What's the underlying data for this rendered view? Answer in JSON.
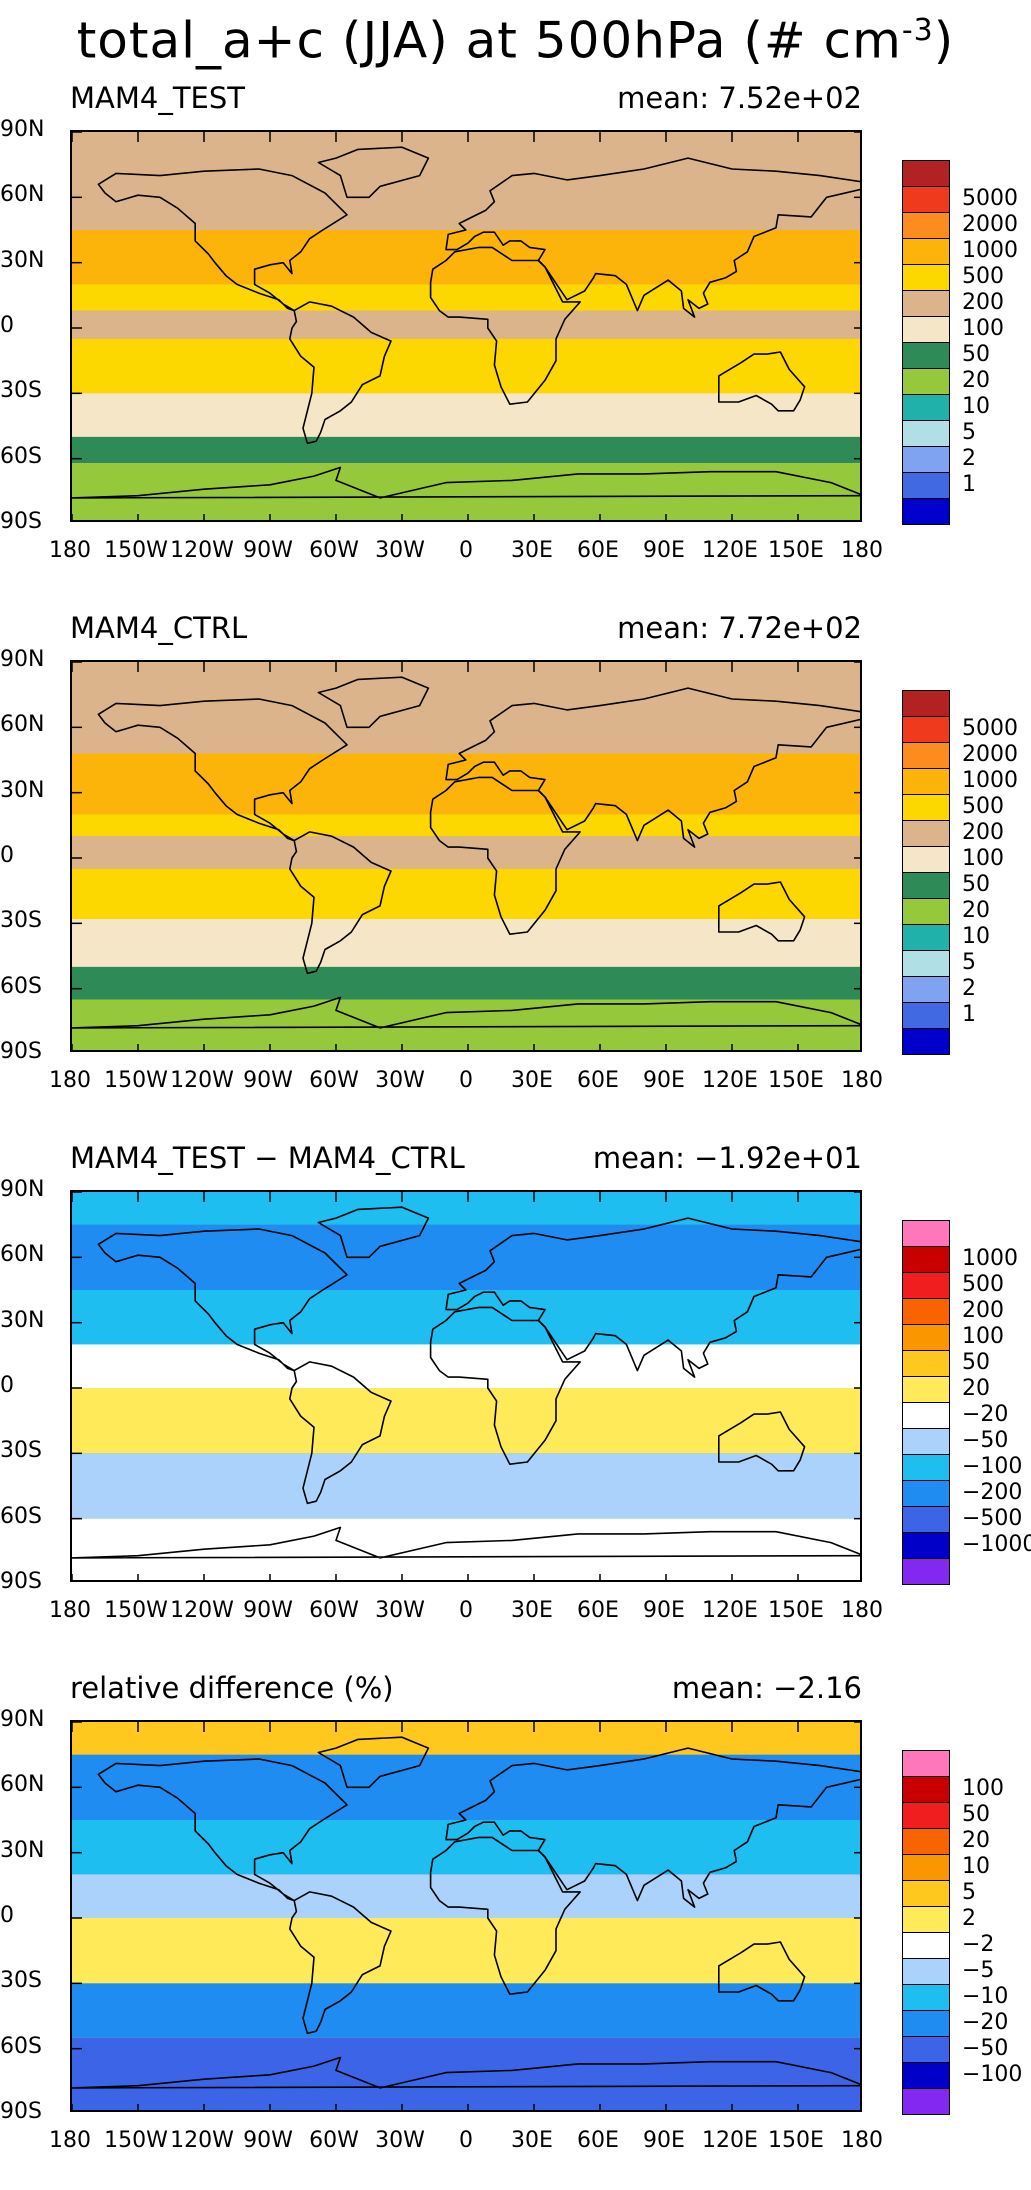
{
  "title": {
    "main": "total_a+c (JJA) at 500hPa (# cm",
    "sup": "-3",
    "close": ")"
  },
  "axes": {
    "lat_labels": [
      "90N",
      "60N",
      "30N",
      "0",
      "30S",
      "60S",
      "90S"
    ],
    "lat_values": [
      90,
      60,
      30,
      0,
      -30,
      -60,
      -90
    ],
    "lon_labels": [
      "180",
      "150W",
      "120W",
      "90W",
      "60W",
      "30W",
      "0",
      "30E",
      "60E",
      "90E",
      "120E",
      "150E",
      "180"
    ],
    "lon_values": [
      -180,
      -150,
      -120,
      -90,
      -60,
      -30,
      0,
      30,
      60,
      90,
      120,
      150,
      180
    ],
    "xlim": [
      -180,
      180
    ],
    "ylim": [
      -90,
      90
    ]
  },
  "chart_data": [
    {
      "type": "heatmap",
      "title": "MAM4_TEST",
      "mean_label": "mean:",
      "mean_value": "7.52e+02",
      "levels": [
        "5000",
        "2000",
        "1000",
        "500",
        "200",
        "100",
        "50",
        "20",
        "10",
        "5",
        "2",
        "1"
      ],
      "colors": [
        "#b22222",
        "#f03a1e",
        "#fc8c1e",
        "#fcb40a",
        "#fcd800",
        "#dcb48c",
        "#f5e6c8",
        "#2e8b57",
        "#96c83c",
        "#20b2aa",
        "#b0e0e6",
        "#7fa3f0",
        "#4169e1",
        "#0000cd"
      ],
      "bands": [
        {
          "lat_from": 90,
          "lat_to": 45,
          "level": 5
        },
        {
          "lat_from": 45,
          "lat_to": 20,
          "level": 3
        },
        {
          "lat_from": 20,
          "lat_to": 8,
          "level": 4
        },
        {
          "lat_from": 8,
          "lat_to": -5,
          "level": 5
        },
        {
          "lat_from": -5,
          "lat_to": -30,
          "level": 4
        },
        {
          "lat_from": -30,
          "lat_to": -50,
          "level": 6
        },
        {
          "lat_from": -50,
          "lat_to": -62,
          "level": 7
        },
        {
          "lat_from": -62,
          "lat_to": -90,
          "level": 8
        }
      ]
    },
    {
      "type": "heatmap",
      "title": "MAM4_CTRL",
      "mean_label": "mean:",
      "mean_value": "7.72e+02",
      "levels": [
        "5000",
        "2000",
        "1000",
        "500",
        "200",
        "100",
        "50",
        "20",
        "10",
        "5",
        "2",
        "1"
      ],
      "colors": [
        "#b22222",
        "#f03a1e",
        "#fc8c1e",
        "#fcb40a",
        "#fcd800",
        "#dcb48c",
        "#f5e6c8",
        "#2e8b57",
        "#96c83c",
        "#20b2aa",
        "#b0e0e6",
        "#7fa3f0",
        "#4169e1",
        "#0000cd"
      ],
      "bands": [
        {
          "lat_from": 90,
          "lat_to": 48,
          "level": 5
        },
        {
          "lat_from": 48,
          "lat_to": 20,
          "level": 3
        },
        {
          "lat_from": 20,
          "lat_to": 10,
          "level": 4
        },
        {
          "lat_from": 10,
          "lat_to": -5,
          "level": 5
        },
        {
          "lat_from": -5,
          "lat_to": -28,
          "level": 4
        },
        {
          "lat_from": -28,
          "lat_to": -50,
          "level": 6
        },
        {
          "lat_from": -50,
          "lat_to": -65,
          "level": 7
        },
        {
          "lat_from": -65,
          "lat_to": -90,
          "level": 8
        }
      ]
    },
    {
      "type": "heatmap",
      "title": "MAM4_TEST − MAM4_CTRL",
      "mean_label": "mean:",
      "mean_value": "−1.92e+01",
      "levels": [
        "1000",
        "500",
        "200",
        "100",
        "50",
        "20",
        "−20",
        "−50",
        "−100",
        "−200",
        "−500",
        "−1000"
      ],
      "colors": [
        "#ff77bb",
        "#c80000",
        "#f01e1e",
        "#fa6400",
        "#fa9600",
        "#ffc81e",
        "#ffeb5a",
        "#ffffff",
        "#aad2fa",
        "#1ebef0",
        "#1e8cf0",
        "#3c64e6",
        "#0000c8",
        "#8228f0"
      ],
      "bands": [
        {
          "lat_from": 90,
          "lat_to": 75,
          "level": 9
        },
        {
          "lat_from": 75,
          "lat_to": 45,
          "level": 10
        },
        {
          "lat_from": 45,
          "lat_to": 20,
          "level": 9
        },
        {
          "lat_from": 20,
          "lat_to": 0,
          "level": 7
        },
        {
          "lat_from": 0,
          "lat_to": -30,
          "level": 6
        },
        {
          "lat_from": -30,
          "lat_to": -60,
          "level": 8
        },
        {
          "lat_from": -60,
          "lat_to": -90,
          "level": 7
        }
      ]
    },
    {
      "type": "heatmap",
      "title": "relative difference (%)",
      "mean_label": "mean:",
      "mean_value": "−2.16",
      "levels": [
        "100",
        "50",
        "20",
        "10",
        "5",
        "2",
        "−2",
        "−5",
        "−10",
        "−20",
        "−50",
        "−100"
      ],
      "colors": [
        "#ff77bb",
        "#c80000",
        "#f01e1e",
        "#fa6400",
        "#fa9600",
        "#ffc81e",
        "#ffeb5a",
        "#ffffff",
        "#aad2fa",
        "#1ebef0",
        "#1e8cf0",
        "#3c64e6",
        "#0000c8",
        "#8228f0"
      ],
      "bands": [
        {
          "lat_from": 90,
          "lat_to": 75,
          "level": 5
        },
        {
          "lat_from": 75,
          "lat_to": 45,
          "level": 10
        },
        {
          "lat_from": 45,
          "lat_to": 20,
          "level": 9
        },
        {
          "lat_from": 20,
          "lat_to": 0,
          "level": 8
        },
        {
          "lat_from": 0,
          "lat_to": -30,
          "level": 6
        },
        {
          "lat_from": -30,
          "lat_to": -55,
          "level": 10
        },
        {
          "lat_from": -55,
          "lat_to": -90,
          "level": 11
        }
      ]
    }
  ]
}
